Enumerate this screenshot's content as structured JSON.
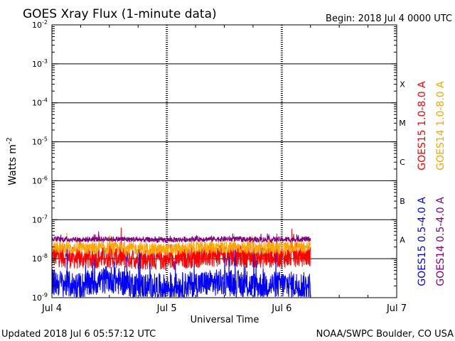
{
  "header": {
    "title": "GOES Xray Flux (1-minute data)",
    "begin": "Begin:  2018 Jul 4 0000 UTC"
  },
  "footer": {
    "updated": "Updated 2018 Jul  6 05:57:12 UTC",
    "source": "NOAA/SWPC Boulder, CO USA"
  },
  "chart_data": {
    "type": "line",
    "title": "GOES Xray Flux (1-minute data)",
    "xlabel": "Universal Time",
    "ylabel_base": "Watts m",
    "ylabel_exp": "-2",
    "y_scale": "log",
    "ylim": [
      1e-09,
      0.01
    ],
    "y_ticks": [
      {
        "value": 0.01,
        "exp": "-2"
      },
      {
        "value": 0.001,
        "exp": "-3"
      },
      {
        "value": 0.0001,
        "exp": "-4"
      },
      {
        "value": 1e-05,
        "exp": "-5"
      },
      {
        "value": 1e-06,
        "exp": "-6"
      },
      {
        "value": 1e-07,
        "exp": "-7"
      },
      {
        "value": 1e-08,
        "exp": "-8"
      },
      {
        "value": 1e-09,
        "exp": "-9"
      }
    ],
    "y_tick_base": "10",
    "x_range_days": [
      0,
      3
    ],
    "x_ticks": [
      {
        "day": 0,
        "label": "Jul 4"
      },
      {
        "day": 1,
        "label": "Jul 5"
      },
      {
        "day": 2,
        "label": "Jul 6"
      },
      {
        "day": 3,
        "label": "Jul 7"
      }
    ],
    "flare_classes": [
      {
        "label": "X",
        "lower": 0.0001
      },
      {
        "label": "M",
        "lower": 1e-05
      },
      {
        "label": "C",
        "lower": 1e-06
      },
      {
        "label": "B",
        "lower": 1e-07
      },
      {
        "label": "A",
        "lower": 1e-08
      }
    ],
    "grid": true,
    "series": [
      {
        "name": "GOES15 1.0-8.0 A",
        "color": "#ff0000",
        "band": "long",
        "values": [
          {
            "day": 0,
            "flux": 1.2e-08
          },
          {
            "day": 0.25,
            "flux": 1e-08
          },
          {
            "day": 0.5,
            "flux": 1.1e-08
          },
          {
            "day": 0.75,
            "flux": 1e-08
          },
          {
            "day": 1.0,
            "flux": 9.5e-09
          },
          {
            "day": 1.25,
            "flux": 1.1e-08
          },
          {
            "day": 1.5,
            "flux": 1.2e-08
          },
          {
            "day": 1.75,
            "flux": 1.1e-08
          },
          {
            "day": 2.0,
            "flux": 1.1e-08
          },
          {
            "day": 2.25,
            "flux": 1.2e-08
          }
        ]
      },
      {
        "name": "GOES14 1.0-8.0 A",
        "color": "#ffa500",
        "band": "long",
        "values": [
          {
            "day": 0,
            "flux": 2e-08
          },
          {
            "day": 0.25,
            "flux": 1.8e-08
          },
          {
            "day": 0.5,
            "flux": 1.9e-08
          },
          {
            "day": 0.75,
            "flux": 1.8e-08
          },
          {
            "day": 1.0,
            "flux": 1.7e-08
          },
          {
            "day": 1.25,
            "flux": 1.9e-08
          },
          {
            "day": 1.5,
            "flux": 2e-08
          },
          {
            "day": 1.75,
            "flux": 1.9e-08
          },
          {
            "day": 2.0,
            "flux": 1.9e-08
          },
          {
            "day": 2.25,
            "flux": 2e-08
          }
        ]
      },
      {
        "name": "GOES15 0.5-4.0 A",
        "color": "#0000ff",
        "band": "short",
        "values": [
          {
            "day": 0,
            "flux": 2.5e-09
          },
          {
            "day": 0.25,
            "flux": 2e-09
          },
          {
            "day": 0.5,
            "flux": 3e-09
          },
          {
            "day": 0.75,
            "flux": 2e-09
          },
          {
            "day": 1.0,
            "flux": 1.8e-09
          },
          {
            "day": 1.25,
            "flux": 2.2e-09
          },
          {
            "day": 1.5,
            "flux": 2.5e-09
          },
          {
            "day": 1.75,
            "flux": 2e-09
          },
          {
            "day": 2.0,
            "flux": 2.2e-09
          },
          {
            "day": 2.25,
            "flux": 2e-09
          }
        ]
      },
      {
        "name": "GOES14 0.5-4.0 A",
        "color": "#800080",
        "band": "short",
        "values": [
          {
            "day": 0,
            "flux": 3.2e-08
          },
          {
            "day": 0.25,
            "flux": 3.1e-08
          },
          {
            "day": 0.5,
            "flux": 3.2e-08
          },
          {
            "day": 0.75,
            "flux": 3.1e-08
          },
          {
            "day": 1.0,
            "flux": 3e-08
          },
          {
            "day": 1.25,
            "flux": 3.2e-08
          },
          {
            "day": 1.5,
            "flux": 3.2e-08
          },
          {
            "day": 1.75,
            "flux": 3.1e-08
          },
          {
            "day": 2.0,
            "flux": 3.1e-08
          },
          {
            "day": 2.25,
            "flux": 3.2e-08
          }
        ]
      }
    ]
  }
}
